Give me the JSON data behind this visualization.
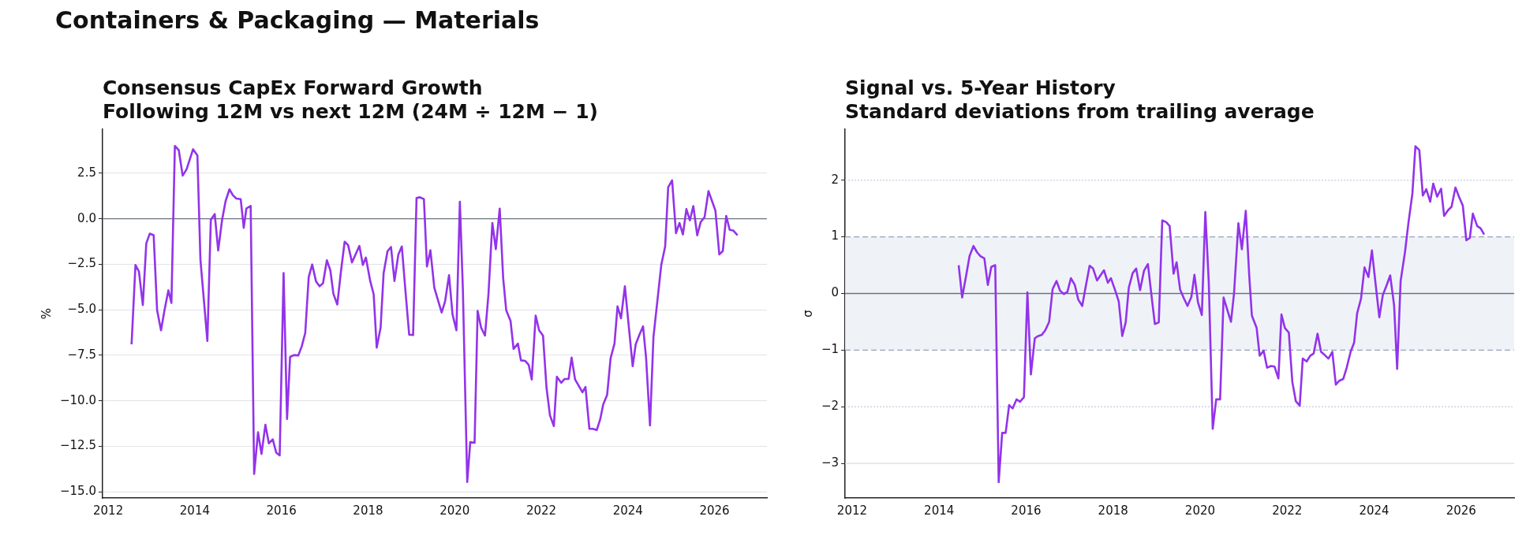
{
  "chart_data": [
    {
      "type": "line",
      "title": "Consensus CapEx Forward Growth",
      "subtitle": "Following 12M vs next 12M (24M ÷ 12M − 1)",
      "ylabel": "%",
      "annotations": [
        "Containers & Packaging — Materials"
      ],
      "xlim": [
        2011.87,
        2027.21
      ],
      "xticks": [
        2012,
        2014,
        2016,
        2018,
        2020,
        2022,
        2024,
        2026
      ],
      "ylim": [
        -15.34,
        4.92
      ],
      "yticks": [
        {
          "value": -15,
          "label": "−15.0"
        },
        {
          "value": -12.5,
          "label": "−12.5"
        },
        {
          "value": -10,
          "label": "−10.0"
        },
        {
          "value": -7.5,
          "label": "−7.5"
        },
        {
          "value": -5,
          "label": "−5.0"
        },
        {
          "value": -2.5,
          "label": "−2.5"
        },
        {
          "value": 0,
          "label": "0.0"
        },
        {
          "value": 2.5,
          "label": "2.5"
        }
      ],
      "grid": "y",
      "ref_lines": [
        {
          "axis": "y",
          "value": 0,
          "color": "#6b7280",
          "line_style": "solid"
        }
      ],
      "series": [
        {
          "color": "#9333ea",
          "x": [
            2012.54,
            2012.63,
            2012.71,
            2012.8,
            2012.88,
            2012.96,
            2013.05,
            2013.13,
            2013.22,
            2013.3,
            2013.39,
            2013.46,
            2013.54,
            2013.63,
            2013.72,
            2013.81,
            2013.96,
            2014.06,
            2014.13,
            2014.29,
            2014.37,
            2014.46,
            2014.54,
            2014.63,
            2014.71,
            2014.8,
            2014.88,
            2014.96,
            2015.06,
            2015.13,
            2015.19,
            2015.29,
            2015.37,
            2015.46,
            2015.54,
            2015.63,
            2015.71,
            2015.8,
            2015.88,
            2015.96,
            2016.05,
            2016.13,
            2016.2,
            2016.29,
            2016.39,
            2016.47,
            2016.55,
            2016.63,
            2016.71,
            2016.8,
            2016.88,
            2016.96,
            2017.05,
            2017.13,
            2017.2,
            2017.29,
            2017.37,
            2017.46,
            2017.54,
            2017.63,
            2017.8,
            2017.88,
            2017.95,
            2018.05,
            2018.13,
            2018.2,
            2018.29,
            2018.36,
            2018.45,
            2018.53,
            2018.61,
            2018.7,
            2018.78,
            2018.87,
            2018.95,
            2019.04,
            2019.12,
            2019.2,
            2019.29,
            2019.36,
            2019.44,
            2019.53,
            2019.61,
            2019.7,
            2019.78,
            2019.87,
            2019.95,
            2020.04,
            2020.12,
            2020.19,
            2020.29,
            2020.36,
            2020.46,
            2020.53,
            2020.61,
            2020.7,
            2020.78,
            2020.87,
            2020.95,
            2021.04,
            2021.12,
            2021.19,
            2021.29,
            2021.36,
            2021.46,
            2021.53,
            2021.63,
            2021.71,
            2021.78,
            2021.87,
            2021.95,
            2022.04,
            2022.12,
            2022.2,
            2022.29,
            2022.36,
            2022.46,
            2022.54,
            2022.63,
            2022.7,
            2022.78,
            2022.87,
            2022.95,
            2023.02,
            2023.11,
            2023.19,
            2023.28,
            2023.36,
            2023.43,
            2023.52,
            2023.6,
            2023.69,
            2023.76,
            2023.84,
            2023.93,
            2024.02,
            2024.11,
            2024.18,
            2024.27,
            2024.35,
            2024.42,
            2024.51,
            2024.59,
            2024.77,
            2024.86,
            2024.93,
            2025.02,
            2025.11,
            2025.19,
            2025.27,
            2025.35,
            2025.43,
            2025.51,
            2025.6,
            2025.68,
            2025.77,
            2025.86,
            2026.02,
            2026.11,
            2026.19,
            2026.27,
            2026.35,
            2026.43,
            2026.53
          ],
          "values": [
            -6.9,
            -2.54,
            -2.9,
            -4.74,
            -1.35,
            -0.82,
            -0.9,
            -5.03,
            -6.13,
            -5.03,
            -3.93,
            -4.62,
            4.0,
            3.77,
            2.37,
            2.72,
            3.82,
            3.48,
            -2.25,
            -6.71,
            -0.06,
            0.26,
            -1.74,
            -0.06,
            0.96,
            1.62,
            1.29,
            1.11,
            1.08,
            -0.5,
            0.56,
            0.7,
            -14.02,
            -11.73,
            -12.92,
            -11.32,
            -12.34,
            -12.12,
            -12.85,
            -13.0,
            -2.98,
            -11.0,
            -7.59,
            -7.49,
            -7.51,
            -7.0,
            -6.27,
            -3.2,
            -2.51,
            -3.45,
            -3.71,
            -3.54,
            -2.28,
            -2.84,
            -4.12,
            -4.71,
            -2.98,
            -1.26,
            -1.45,
            -2.4,
            -1.49,
            -2.54,
            -2.13,
            -3.42,
            -4.15,
            -7.08,
            -5.98,
            -2.98,
            -1.78,
            -1.55,
            -3.42,
            -1.96,
            -1.52,
            -4.15,
            -6.37,
            -6.39,
            1.14,
            1.18,
            1.08,
            -2.62,
            -1.73,
            -3.79,
            -4.44,
            -5.15,
            -4.52,
            -3.1,
            -5.25,
            -6.13,
            0.94,
            -3.93,
            -14.46,
            -12.27,
            -12.31,
            -5.06,
            -5.98,
            -6.42,
            -4.15,
            -0.23,
            -1.67,
            0.56,
            -3.27,
            -5.03,
            -5.61,
            -7.15,
            -6.86,
            -7.78,
            -7.81,
            -8.03,
            -8.83,
            -5.32,
            -6.13,
            -6.42,
            -9.27,
            -10.8,
            -11.39,
            -8.68,
            -9.01,
            -8.8,
            -8.8,
            -7.63,
            -8.83,
            -9.2,
            -9.53,
            -9.24,
            -11.54,
            -11.54,
            -11.61,
            -11.02,
            -10.2,
            -9.68,
            -7.66,
            -6.86,
            -4.81,
            -5.47,
            -3.71,
            -5.91,
            -8.1,
            -6.9,
            -6.35,
            -5.91,
            -7.66,
            -11.35,
            -6.49,
            -2.54,
            -1.52,
            1.73,
            2.11,
            -0.79,
            -0.23,
            -0.86,
            0.53,
            -0.09,
            0.7,
            -0.91,
            -0.18,
            0.09,
            1.52,
            0.45,
            -1.96,
            -1.78,
            0.16,
            -0.61,
            -0.64,
            -0.91
          ]
        }
      ]
    },
    {
      "type": "line",
      "title": "Signal vs. 5-Year History",
      "subtitle": "Standard deviations from trailing average",
      "ylabel": "σ",
      "xlim": [
        2011.84,
        2027.22
      ],
      "xticks": [
        2012,
        2014,
        2016,
        2018,
        2020,
        2022,
        2024,
        2026
      ],
      "ylim": [
        -3.61,
        2.9
      ],
      "yticks": [
        {
          "value": -3,
          "label": "−3"
        },
        {
          "value": -2,
          "label": "−2"
        },
        {
          "value": -1,
          "label": "−1"
        },
        0,
        1,
        2
      ],
      "bands": [
        {
          "axis": "y",
          "from": -1,
          "to": 1,
          "color": "#eff3f8"
        }
      ],
      "ref_lines": [
        {
          "axis": "y",
          "value": 0,
          "color": "#6b7280",
          "line_style": "solid"
        },
        {
          "axis": "y",
          "value": 1,
          "color": "#94a3b8",
          "line_style": "dashed"
        },
        {
          "axis": "y",
          "value": -1,
          "color": "#94a3b8",
          "line_style": "dashed"
        },
        {
          "axis": "y",
          "value": 2,
          "color": "#cbd5e1",
          "line_style": "dotted"
        },
        {
          "axis": "y",
          "value": -2,
          "color": "#cbd5e1",
          "line_style": "dotted"
        },
        {
          "axis": "y",
          "value": -3,
          "color": "#dcdcdc",
          "line_style": "solid"
        }
      ],
      "series": [
        {
          "color": "#9333ea",
          "x": [
            2014.45,
            2014.53,
            2014.62,
            2014.7,
            2014.79,
            2014.87,
            2014.95,
            2015.04,
            2015.12,
            2015.2,
            2015.29,
            2015.37,
            2015.45,
            2015.53,
            2015.61,
            2015.69,
            2015.78,
            2015.86,
            2015.95,
            2016.03,
            2016.11,
            2016.2,
            2016.28,
            2016.36,
            2016.44,
            2016.53,
            2016.61,
            2016.7,
            2016.78,
            2016.87,
            2016.95,
            2017.03,
            2017.12,
            2017.2,
            2017.29,
            2017.37,
            2017.46,
            2017.54,
            2017.63,
            2017.71,
            2017.79,
            2017.88,
            2017.95,
            2018.05,
            2018.13,
            2018.21,
            2018.29,
            2018.36,
            2018.45,
            2018.53,
            2018.62,
            2018.71,
            2018.8,
            2018.88,
            2018.96,
            2019.05,
            2019.13,
            2019.22,
            2019.3,
            2019.39,
            2019.46,
            2019.54,
            2019.63,
            2019.71,
            2019.8,
            2019.87,
            2019.95,
            2020.04,
            2020.12,
            2020.2,
            2020.29,
            2020.37,
            2020.46,
            2020.54,
            2020.63,
            2020.71,
            2020.78,
            2020.88,
            2020.96,
            2021.05,
            2021.13,
            2021.19,
            2021.3,
            2021.37,
            2021.46,
            2021.54,
            2021.63,
            2021.71,
            2021.8,
            2021.87,
            2021.95,
            2022.04,
            2022.12,
            2022.2,
            2022.29,
            2022.36,
            2022.45,
            2022.53,
            2022.61,
            2022.7,
            2022.78,
            2022.87,
            2022.95,
            2023.04,
            2023.12,
            2023.2,
            2023.29,
            2023.37,
            2023.46,
            2023.54,
            2023.61,
            2023.7,
            2023.78,
            2023.87,
            2023.95,
            2024.04,
            2024.12,
            2024.2,
            2024.29,
            2024.37,
            2024.46,
            2024.53,
            2024.61,
            2024.71,
            2024.79,
            2024.88,
            2024.95,
            2025.04,
            2025.12,
            2025.2,
            2025.29,
            2025.36,
            2025.45,
            2025.54,
            2025.61,
            2025.7,
            2025.78,
            2025.87,
            2025.95,
            2026.04,
            2026.12,
            2026.2,
            2026.27,
            2026.37,
            2026.45,
            2026.53
          ],
          "values": [
            0.5,
            -0.07,
            0.31,
            0.66,
            0.84,
            0.73,
            0.66,
            0.62,
            0.15,
            0.47,
            0.5,
            -3.33,
            -2.46,
            -2.46,
            -1.97,
            -2.03,
            -1.87,
            -1.91,
            -1.83,
            0.02,
            -1.43,
            -0.79,
            -0.75,
            -0.73,
            -0.65,
            -0.5,
            0.08,
            0.22,
            0.05,
            -0.01,
            0.03,
            0.27,
            0.15,
            -0.11,
            -0.22,
            0.12,
            0.49,
            0.44,
            0.23,
            0.32,
            0.41,
            0.19,
            0.27,
            0.05,
            -0.14,
            -0.75,
            -0.51,
            0.1,
            0.36,
            0.44,
            0.06,
            0.4,
            0.52,
            -0.02,
            -0.54,
            -0.51,
            1.29,
            1.26,
            1.19,
            0.35,
            0.55,
            0.07,
            -0.09,
            -0.22,
            -0.06,
            0.33,
            -0.15,
            -0.38,
            1.44,
            0.19,
            -2.39,
            -1.87,
            -1.87,
            -0.07,
            -0.3,
            -0.5,
            0.0,
            1.24,
            0.78,
            1.46,
            0.31,
            -0.39,
            -0.61,
            -1.1,
            -1.01,
            -1.31,
            -1.28,
            -1.29,
            -1.5,
            -0.37,
            -0.61,
            -0.69,
            -1.56,
            -1.9,
            -1.98,
            -1.15,
            -1.2,
            -1.1,
            -1.06,
            -0.71,
            -1.03,
            -1.09,
            -1.15,
            -1.03,
            -1.61,
            -1.54,
            -1.51,
            -1.31,
            -1.03,
            -0.87,
            -0.35,
            -0.09,
            0.46,
            0.29,
            0.76,
            0.13,
            -0.42,
            -0.03,
            0.15,
            0.32,
            -0.21,
            -1.33,
            0.22,
            0.73,
            1.25,
            1.76,
            2.6,
            2.53,
            1.73,
            1.84,
            1.62,
            1.94,
            1.71,
            1.85,
            1.37,
            1.47,
            1.53,
            1.87,
            1.71,
            1.55,
            0.94,
            0.98,
            1.41,
            1.19,
            1.15,
            1.04
          ]
        }
      ]
    }
  ]
}
